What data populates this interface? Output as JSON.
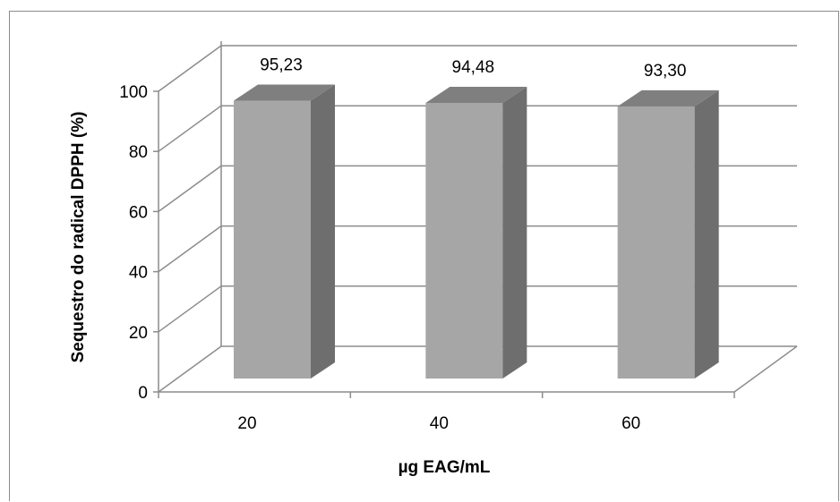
{
  "chart_data": {
    "type": "bar",
    "style": "3d-column",
    "categories": [
      "20",
      "40",
      "60"
    ],
    "values": [
      95.23,
      94.48,
      93.3
    ],
    "data_labels": [
      "95,23",
      "94,48",
      "93,30"
    ],
    "xlabel": "µg EAG/mL",
    "ylabel": "Sequestro do radical DPPH (%)",
    "ylim": [
      0,
      100
    ],
    "yticks": [
      "0",
      "20",
      "40",
      "60",
      "80",
      "100"
    ],
    "grid": true,
    "legend": "none",
    "colors": {
      "bar_front": "#a6a6a6",
      "bar_side": "#6e6e6e",
      "bar_top": "#7f7f7f",
      "grid": "#8c8c8c"
    }
  }
}
